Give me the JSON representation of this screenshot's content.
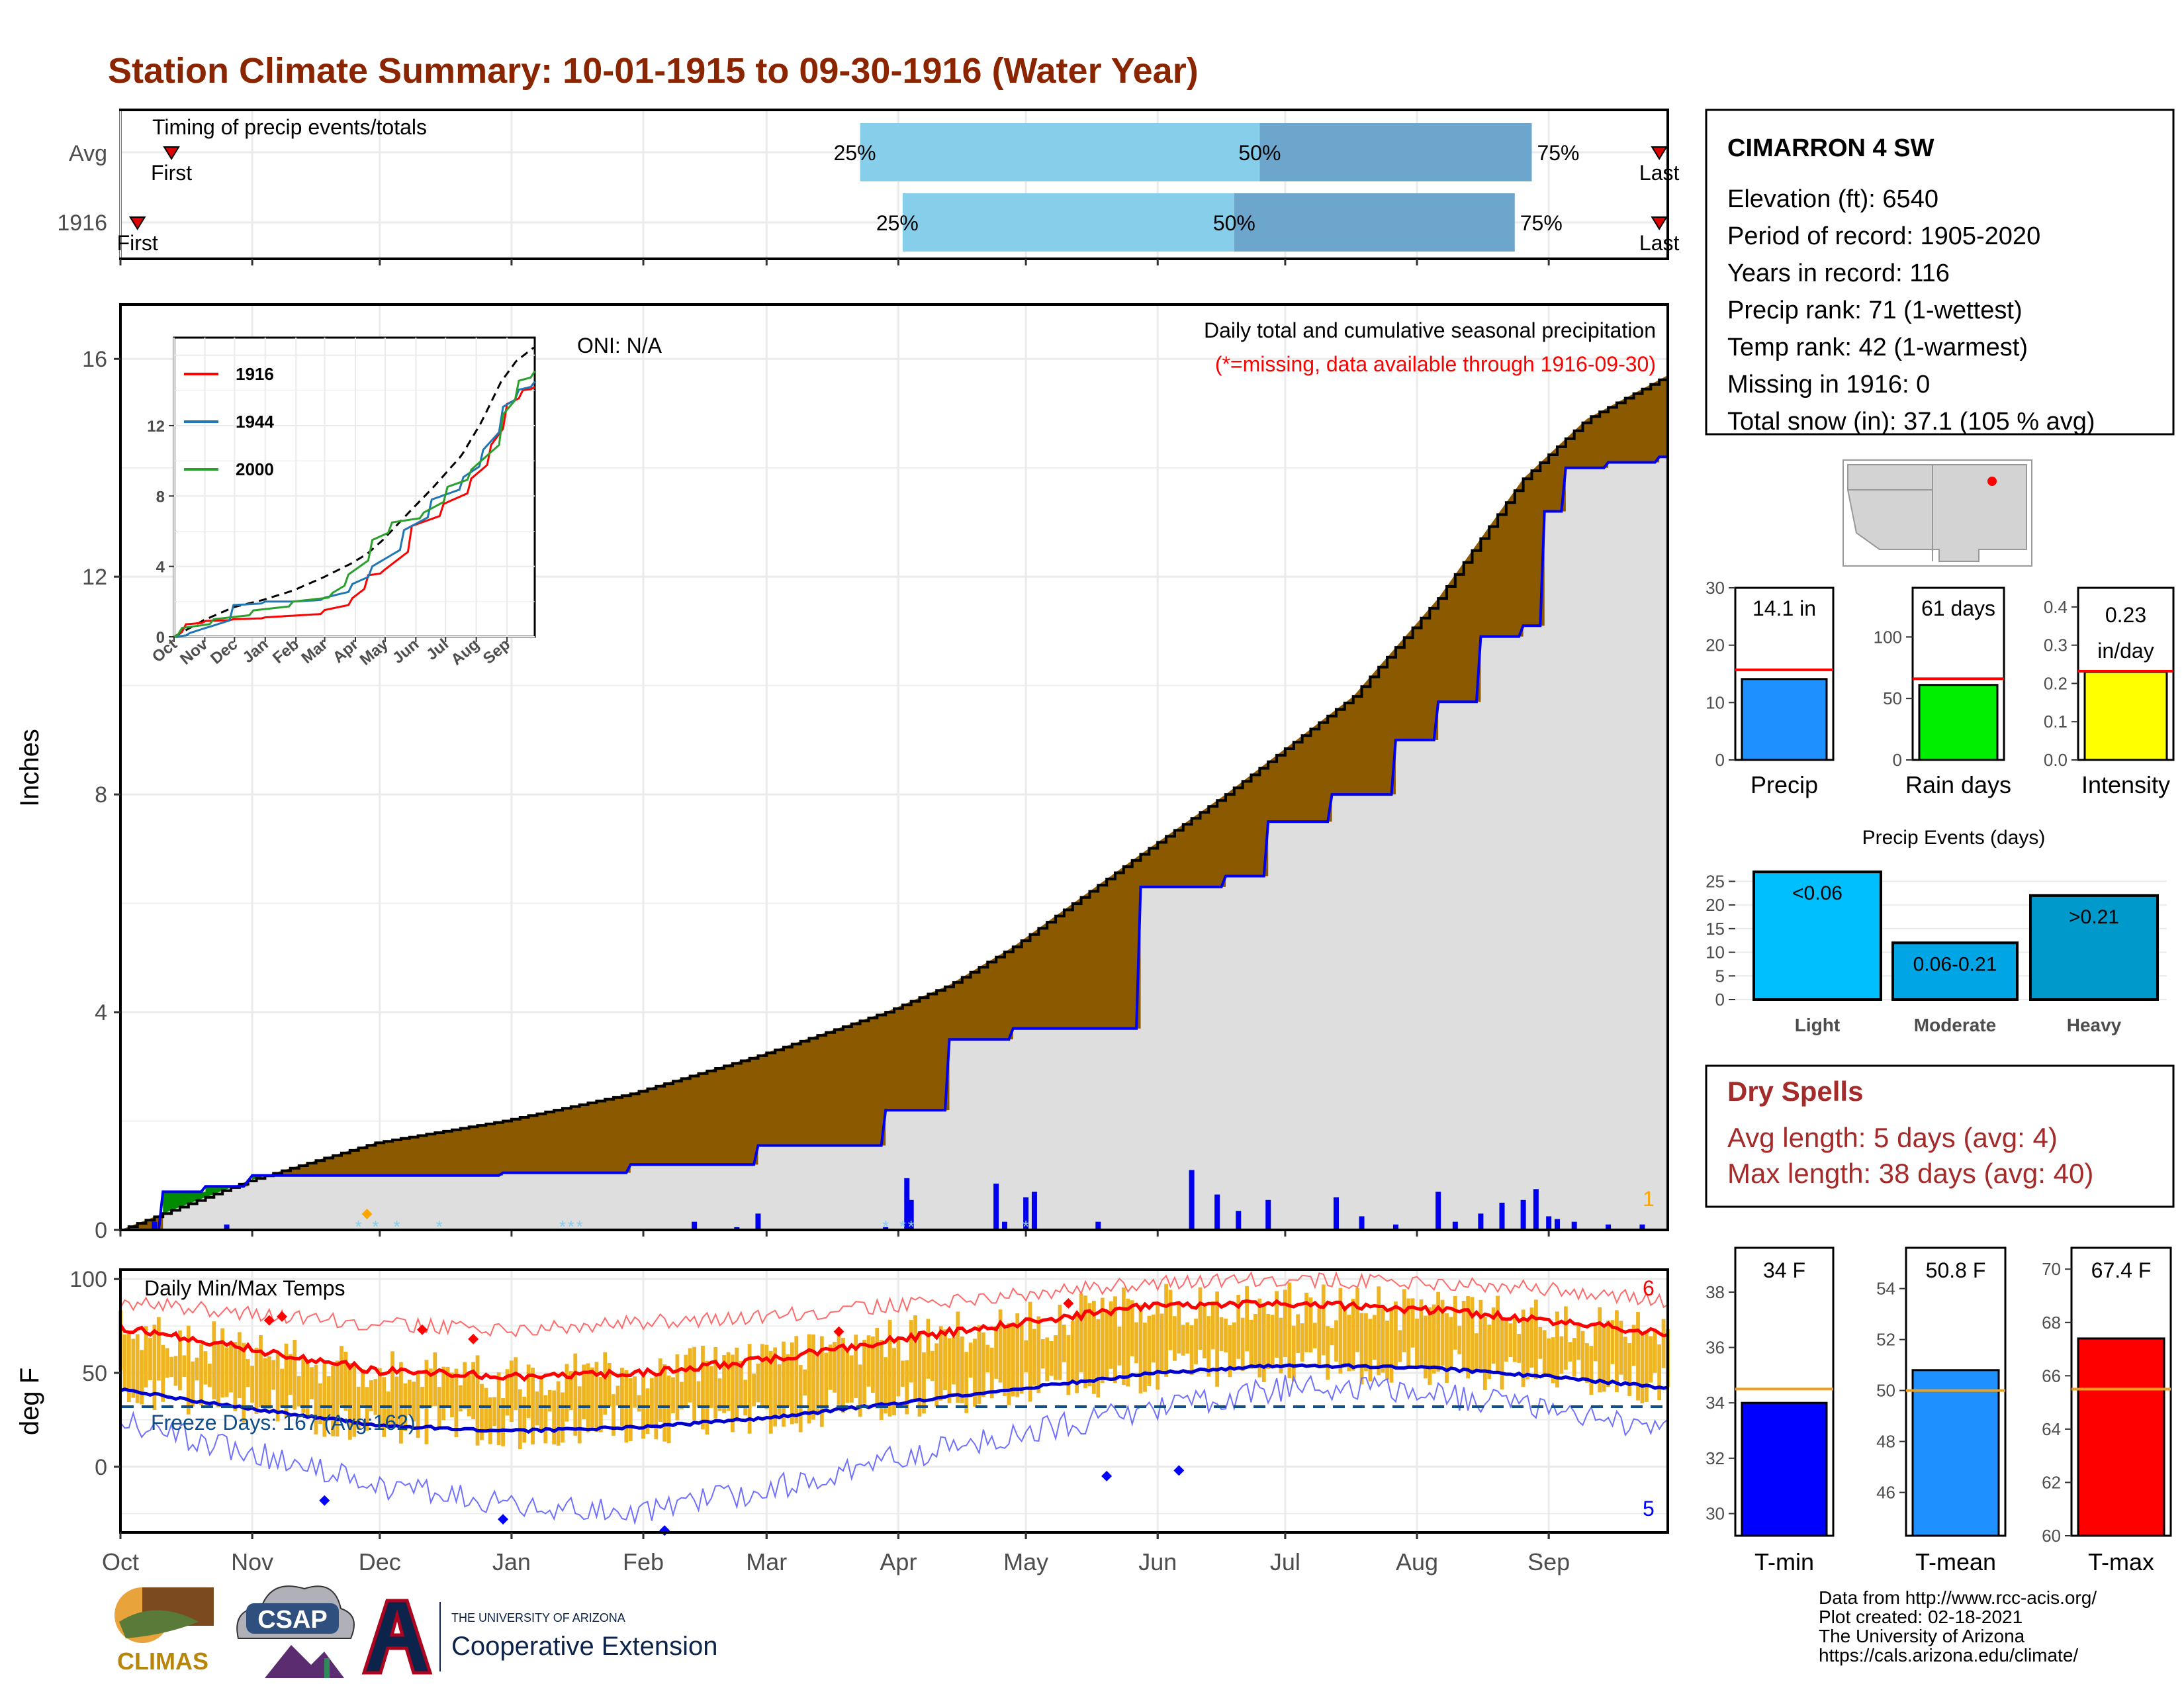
{
  "title": "Station Climate Summary: 10-01-1915 to 09-30-1916 (Water Year)",
  "colors": {
    "title": "#8B2500",
    "precip_bar": "#1E90FF",
    "rain_days_bar": "#00EE00",
    "intensity_bar": "#FFFF00",
    "events_bar": "#00BFFF",
    "deficit": "#8B5A00",
    "surplus": "#008B00",
    "climatology_fill": "#DEDEDE",
    "daily_bar": "#0000EE",
    "temp_bar": "#EEB422",
    "tmin_bar": "#0000FF",
    "tmean_bar": "#1E90FF",
    "tmax_bar": "#FF0000",
    "dry_spells_text": "#A52A2A"
  },
  "timing": {
    "title": "Timing of precip events/totals",
    "rows": [
      {
        "label": "Avg",
        "first": "First",
        "last": "Last",
        "p25": "25%",
        "p50": "50%",
        "p75": "75%",
        "first_day": 12,
        "p25_day": 174,
        "p50_day": 268,
        "p75_day": 332,
        "last_day": 362
      },
      {
        "label": "1916",
        "first": "First",
        "last": "Last",
        "p25": "25%",
        "p50": "50%",
        "p75": "75%",
        "first_day": 4,
        "p25_day": 184,
        "p50_day": 262,
        "p75_day": 328,
        "last_day": 362
      }
    ]
  },
  "precip_panel": {
    "ylabel": "Inches",
    "header": "Daily total and cumulative seasonal precipitation",
    "subheader": "(*=missing, data available through 1916-09-30)",
    "oni": "ONI: N/A",
    "corner_count": "1",
    "yticks": [
      "0",
      "4",
      "8",
      "12",
      "16"
    ]
  },
  "inset": {
    "yticks": [
      "0",
      "4",
      "8",
      "12"
    ],
    "months": [
      "Oct",
      "Nov",
      "Dec",
      "Jan",
      "Feb",
      "Mar",
      "Apr",
      "May",
      "Jun",
      "Jul",
      "Aug",
      "Sep"
    ],
    "legend": [
      {
        "name": "1916",
        "color": "#FF0000"
      },
      {
        "name": "1944",
        "color": "#1F77B4"
      },
      {
        "name": "2000",
        "color": "#2CA02C"
      }
    ]
  },
  "temp_panel": {
    "ylabel": "deg F",
    "header": "Daily Min/Max Temps",
    "freeze_label": "Freeze Days: 167 (Avg:162)",
    "max_count": "6",
    "min_count": "5",
    "yticks": [
      "0",
      "50",
      "100"
    ]
  },
  "months": [
    "Oct",
    "Nov",
    "Dec",
    "Jan",
    "Feb",
    "Mar",
    "Apr",
    "May",
    "Jun",
    "Jul",
    "Aug",
    "Sep"
  ],
  "station": {
    "name": "CIMARRON 4 SW",
    "lines": [
      "Elevation (ft): 6540",
      "Period of record: 1905-2020",
      "Years in record: 116",
      "Precip rank: 71 (1-wettest)",
      "Temp rank: 42 (1-warmest)",
      "Missing in 1916: 0",
      "Total snow (in): 37.1 (105 % avg)"
    ]
  },
  "summary_bars": [
    {
      "label": "Precip",
      "value_text": "14.1 in",
      "value": 14.1,
      "avg": 15.7,
      "ymax": 30,
      "ticks": [
        "0",
        "10",
        "20",
        "30"
      ]
    },
    {
      "label": "Rain days",
      "value_text": "61 days",
      "value": 61,
      "avg": 66,
      "ymax": 140,
      "ticks": [
        "0",
        "50",
        "100"
      ]
    },
    {
      "label": "Intensity",
      "value_text_1": "0.23",
      "value_text_2": "in/day",
      "value": 0.23,
      "avg": 0.232,
      "ymax": 0.45,
      "ticks": [
        "0.0",
        "0.1",
        "0.2",
        "0.3",
        "0.4"
      ]
    }
  ],
  "precip_events": {
    "title": "Precip Events (days)",
    "ticks": [
      "0",
      "5",
      "10",
      "15",
      "20",
      "25"
    ],
    "bars": [
      {
        "label": "Light",
        "range": "<0.06",
        "value": 27
      },
      {
        "label": "Moderate",
        "range": "0.06-0.21",
        "value": 12
      },
      {
        "label": "Heavy",
        "range": ">0.21",
        "value": 22
      }
    ]
  },
  "dry_spells": {
    "title": "Dry Spells",
    "avg_length": "Avg length: 5 days (avg: 4)",
    "max_length": "Max length: 38 days (avg: 40)"
  },
  "temp_bars": [
    {
      "label": "T-min",
      "value_text": "34 F",
      "value": 34.0,
      "avg": 34.5,
      "ymin": 29.2,
      "ymax": 39.6,
      "ticks": [
        "30",
        "32",
        "34",
        "36",
        "38"
      ]
    },
    {
      "label": "T-mean",
      "value_text": "50.8 F",
      "value": 50.8,
      "avg": 50.0,
      "ymin": 44.3,
      "ymax": 55.6,
      "ticks": [
        "46",
        "48",
        "50",
        "52",
        "54"
      ]
    },
    {
      "label": "T-max",
      "value_text": "67.4 F",
      "value": 67.4,
      "avg": 65.5,
      "ymin": 60.0,
      "ymax": 70.8,
      "ticks": [
        "60",
        "62",
        "64",
        "66",
        "68",
        "70"
      ]
    }
  ],
  "footer": {
    "lines": [
      "Data from http://www.rcc-acis.org/",
      "Plot created: 02-18-2021",
      "The University of Arizona",
      "https://cals.arizona.edu/climate/"
    ]
  },
  "logos": {
    "climas": "CLIMAS",
    "csap": "CSAP",
    "ua_small": "THE UNIVERSITY OF ARIZONA",
    "ua_big": "Cooperative Extension"
  },
  "chart_data": [
    {
      "type": "area",
      "title": "Daily total and cumulative seasonal precipitation",
      "ylabel": "Inches",
      "ylim": [
        0,
        17
      ],
      "x_unit": "day of water year (0 = Oct 1)",
      "series": [
        {
          "name": "1916",
          "x": [
            0,
            10,
            20,
            30,
            31,
            60,
            90,
            120,
            150,
            180,
            195,
            210,
            240,
            260,
            270,
            285,
            300,
            310,
            320,
            330,
            335,
            340,
            350,
            362,
            364
          ],
          "values": [
            0,
            0.7,
            0.8,
            0.9,
            1.0,
            1.0,
            1.05,
            1.2,
            1.55,
            2.2,
            3.5,
            3.7,
            6.3,
            6.5,
            7.5,
            8.0,
            9.0,
            9.7,
            10.9,
            11.1,
            13.2,
            14.0,
            14.1,
            14.2,
            14.2
          ]
        },
        {
          "name": "Average",
          "x": [
            0,
            30,
            60,
            90,
            120,
            150,
            180,
            195,
            210,
            240,
            260,
            275,
            290,
            300,
            310,
            320,
            330,
            345,
            364
          ],
          "values": [
            0,
            0.9,
            1.6,
            2.0,
            2.5,
            3.2,
            4.0,
            4.5,
            5.2,
            6.9,
            8.0,
            8.9,
            9.8,
            10.7,
            11.6,
            12.7,
            13.8,
            14.9,
            15.7
          ]
        }
      ],
      "daily_bars": {
        "x": [
          8,
          25,
          135,
          145,
          150,
          180,
          185,
          186,
          206,
          208,
          213,
          215,
          230,
          252,
          258,
          263,
          270,
          286,
          292,
          300,
          310,
          314,
          320,
          325,
          330,
          333,
          336,
          338,
          342,
          350,
          358
        ],
        "values": [
          0.15,
          0.1,
          0.15,
          0.05,
          0.3,
          0.05,
          0.95,
          0.55,
          0.85,
          0.15,
          0.6,
          0.7,
          0.15,
          1.1,
          0.65,
          0.35,
          0.55,
          0.6,
          0.25,
          0.1,
          0.7,
          0.15,
          0.3,
          0.5,
          0.55,
          0.75,
          0.25,
          0.2,
          0.15,
          0.1,
          0.1
        ]
      }
    },
    {
      "type": "line",
      "title": "Daily Min/Max Temps",
      "ylabel": "deg F",
      "ylim": [
        -35,
        105
      ],
      "x_unit": "day of water year (0 = Oct 1)",
      "series": [
        {
          "name": "Avg Max",
          "x": [
            0,
            30,
            61,
            92,
            123,
            152,
            183,
            213,
            244,
            274,
            305,
            336,
            364
          ],
          "values": [
            74,
            63,
            51,
            48,
            50,
            57,
            68,
            77,
            86,
            87,
            84,
            78,
            71
          ]
        },
        {
          "name": "Avg Min",
          "x": [
            0,
            30,
            61,
            92,
            123,
            152,
            183,
            213,
            244,
            274,
            305,
            336,
            364
          ],
          "values": [
            41,
            31,
            22,
            19,
            21,
            26,
            34,
            42,
            50,
            54,
            53,
            48,
            42
          ]
        },
        {
          "name": "Record Max",
          "x": [
            0,
            30,
            61,
            92,
            123,
            152,
            183,
            213,
            244,
            274,
            305,
            336,
            364
          ],
          "values": [
            88,
            82,
            76,
            73,
            77,
            80,
            86,
            92,
            98,
            100,
            98,
            95,
            88
          ]
        },
        {
          "name": "Record Min",
          "x": [
            0,
            30,
            61,
            92,
            123,
            152,
            183,
            213,
            244,
            274,
            305,
            336,
            364
          ],
          "values": [
            25,
            8,
            -10,
            -20,
            -24,
            -12,
            5,
            18,
            32,
            42,
            40,
            30,
            20
          ]
        }
      ],
      "freeze_line": 32
    }
  ]
}
